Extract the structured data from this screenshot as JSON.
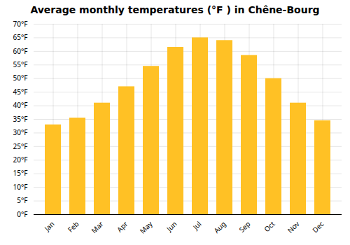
{
  "chart_data": {
    "type": "bar",
    "title": "Average monthly temperatures (°F ) in Chêne-Bourg",
    "categories": [
      "Jan",
      "Feb",
      "Mar",
      "Apr",
      "May",
      "Jun",
      "Jul",
      "Aug",
      "Sep",
      "Oct",
      "Nov",
      "Dec"
    ],
    "values": [
      33,
      35.5,
      41,
      47,
      54.5,
      61.5,
      65,
      64,
      58.5,
      50,
      41,
      34.5
    ],
    "color": "#FFC125",
    "ylim": [
      0,
      70
    ],
    "yticks": [
      {
        "value": 0,
        "label": "0°F"
      },
      {
        "value": 5,
        "label": "5°F"
      },
      {
        "value": 10,
        "label": "10°F"
      },
      {
        "value": 15,
        "label": "15°F"
      },
      {
        "value": 20,
        "label": "20°F"
      },
      {
        "value": 25,
        "label": "25°F"
      },
      {
        "value": 30,
        "label": "30°F"
      },
      {
        "value": 35,
        "label": "35°F"
      },
      {
        "value": 40,
        "label": "40°F"
      },
      {
        "value": 45,
        "label": "45°F"
      },
      {
        "value": 50,
        "label": "50°F"
      },
      {
        "value": 55,
        "label": "55°F"
      },
      {
        "value": 60,
        "label": "60°F"
      },
      {
        "value": 65,
        "label": "65°F"
      },
      {
        "value": 70,
        "label": "70°F"
      }
    ],
    "grid": true
  }
}
